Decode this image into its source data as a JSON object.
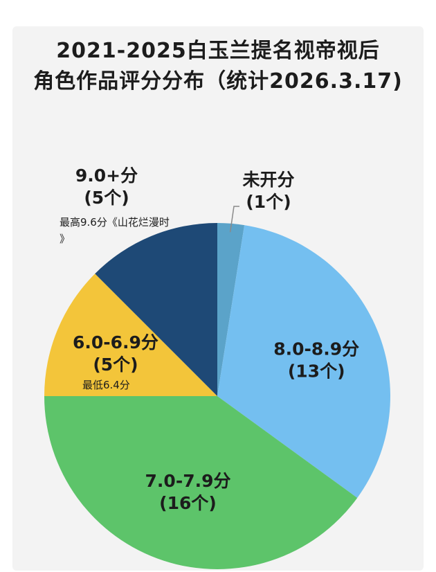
{
  "title_lines": [
    "2021-2025白玉兰提名视帝视后",
    "角色作品评分分布（统计2026.3.17)"
  ],
  "chart_data": {
    "type": "pie",
    "title": "2021-2025白玉兰提名视帝视后角色作品评分分布（统计2026.3.17)",
    "slices": [
      {
        "range": "未开分",
        "count": 1,
        "count_label": "(1个)",
        "color": "#5ba3c9",
        "label_color": "#1c1c1c",
        "note": ""
      },
      {
        "range": "8.0-8.9分",
        "count": 13,
        "count_label": "(13个)",
        "color": "#74bff0",
        "label_color": "#1c1c1c",
        "note": ""
      },
      {
        "range": "7.0-7.9分",
        "count": 16,
        "count_label": "(16个)",
        "color": "#5dc46a",
        "label_color": "#1c1c1c",
        "note": ""
      },
      {
        "range": "6.0-6.9分",
        "count": 5,
        "count_label": "(5个)",
        "color": "#f3c53a",
        "label_color": "#1c1c1c",
        "note": "最低6.4分"
      },
      {
        "range": "9.0+分",
        "count": 5,
        "count_label": "(5个)",
        "color": "#1e4976",
        "label_color": "#1c1c1c",
        "note": "最高9.6分《山花烂漫时》"
      }
    ]
  }
}
